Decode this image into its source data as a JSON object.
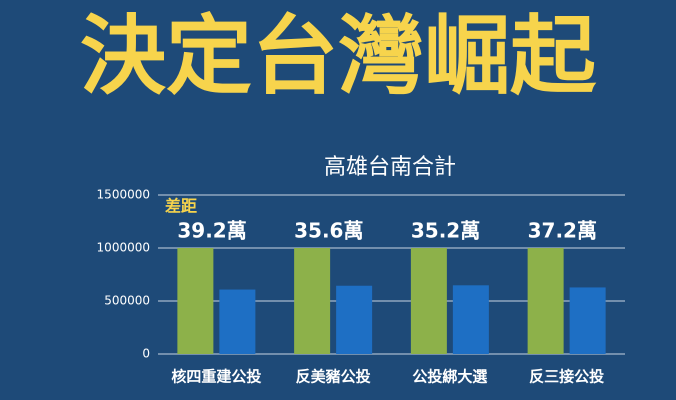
{
  "header": "決定台灣崛起",
  "chart_data": {
    "type": "bar",
    "title": "高雄台南合計",
    "categories": [
      "核四重建公投",
      "反美豬公投",
      "公投綁大選",
      "反三接公投"
    ],
    "series": [
      {
        "color": "#8db14a",
        "values": [
          1000000,
          1000000,
          1000000,
          1000000
        ]
      },
      {
        "color": "#1e6fc4",
        "values": [
          608000,
          644000,
          648000,
          628000
        ]
      }
    ],
    "annotation": "差距",
    "bar_annotations": [
      "39.2萬",
      "35.6萬",
      "35.2萬",
      "37.2萬"
    ],
    "ylim": [
      0,
      1500000
    ],
    "yticks": [
      0,
      500000,
      1000000,
      1500000
    ],
    "grid": true
  }
}
